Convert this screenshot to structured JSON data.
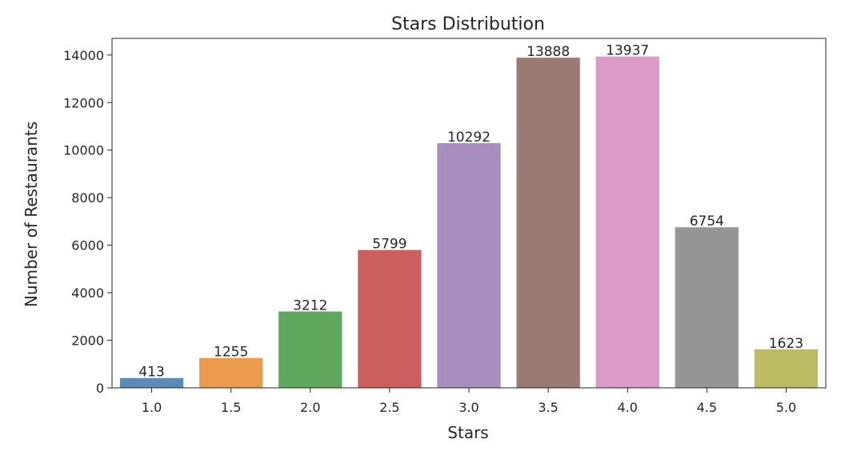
{
  "chart_data": {
    "type": "bar",
    "title": "Stars Distribution",
    "xlabel": "Stars",
    "ylabel": "Number of Restaurants",
    "categories": [
      "1.0",
      "1.5",
      "2.0",
      "2.5",
      "3.0",
      "3.5",
      "4.0",
      "4.5",
      "5.0"
    ],
    "values": [
      413,
      1255,
      3212,
      5799,
      10292,
      13888,
      13937,
      6754,
      1623
    ],
    "data_labels": [
      "413",
      "1255",
      "3212",
      "5799",
      "10292",
      "13888",
      "13937",
      "6754",
      "1623"
    ],
    "colors": [
      "#5a8cb8",
      "#eb9a4e",
      "#5fa85e",
      "#cb5f5f",
      "#a78dc0",
      "#9a7a72",
      "#db9bc8",
      "#959595",
      "#bdbb63"
    ],
    "ylim": [
      0,
      14700
    ],
    "yticks": [
      0,
      2000,
      4000,
      6000,
      8000,
      10000,
      12000,
      14000
    ],
    "ytick_labels": [
      "0",
      "2000",
      "4000",
      "6000",
      "8000",
      "10000",
      "12000",
      "14000"
    ],
    "grid": false,
    "legend": "none"
  }
}
